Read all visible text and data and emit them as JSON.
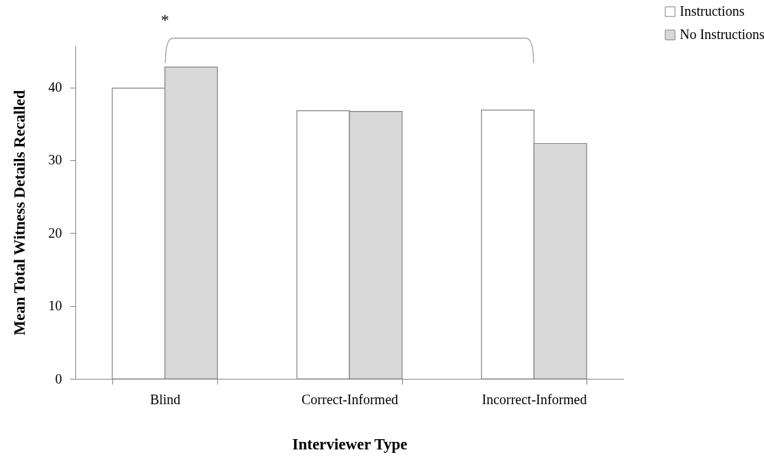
{
  "chart_data": {
    "type": "bar",
    "xlabel": "Interviewer Type",
    "ylabel": "Mean Total Witness Details Recalled",
    "categories": [
      "Blind",
      "Correct-Informed",
      "Incorrect-Informed"
    ],
    "series": [
      {
        "name": "Instructions",
        "color": "#ffffff",
        "values": [
          39.9,
          36.8,
          36.9
        ]
      },
      {
        "name": "No Instructions",
        "color": "#d9d9d9",
        "values": [
          42.8,
          36.7,
          32.3
        ]
      }
    ],
    "ylim": [
      0,
      45.7
    ],
    "yticks": [
      0,
      10,
      20,
      30,
      40
    ],
    "grid": false,
    "legend": "top right",
    "annotations": [
      "*"
    ]
  }
}
